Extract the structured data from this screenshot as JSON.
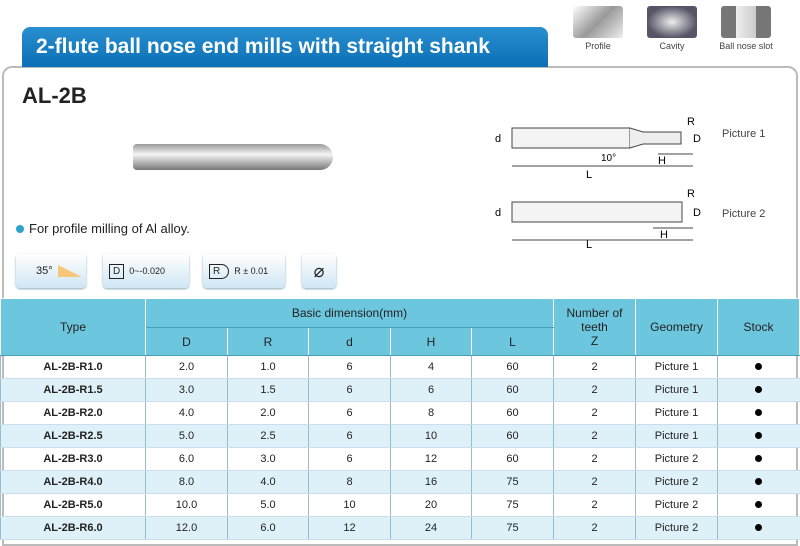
{
  "title": "2-flute ball nose end mills with straight shank",
  "applications": [
    {
      "label": "Profile"
    },
    {
      "label": "Cavity"
    },
    {
      "label": "Ball nose slot"
    }
  ],
  "model": "AL-2B",
  "feature": "For profile milling of Al alloy.",
  "specs": {
    "helix": "35°",
    "d_tol_label": "D",
    "d_tol": "0~-0.020",
    "r_tol_label": "R",
    "r_tol": "R ± 0.01"
  },
  "drawings": {
    "picture1": "Picture 1",
    "picture2": "Picture 2",
    "angle": "10°",
    "labels": {
      "d": "d",
      "D": "D",
      "R": "R",
      "H": "H",
      "L": "L"
    }
  },
  "table": {
    "headers": {
      "type": "Type",
      "basic": "Basic dimension(mm)",
      "teeth": "Number of teeth",
      "teeth_sym": "Z",
      "geometry": "Geometry",
      "stock": "Stock",
      "sub": [
        "D",
        "R",
        "d",
        "H",
        "L"
      ]
    },
    "rows": [
      {
        "type": "AL-2B-R1.0",
        "D": "2.0",
        "R": "1.0",
        "d": "6",
        "H": "4",
        "L": "60",
        "Z": "2",
        "geometry": "Picture 1",
        "stock": true
      },
      {
        "type": "AL-2B-R1.5",
        "D": "3.0",
        "R": "1.5",
        "d": "6",
        "H": "6",
        "L": "60",
        "Z": "2",
        "geometry": "Picture 1",
        "stock": true
      },
      {
        "type": "AL-2B-R2.0",
        "D": "4.0",
        "R": "2.0",
        "d": "6",
        "H": "8",
        "L": "60",
        "Z": "2",
        "geometry": "Picture 1",
        "stock": true
      },
      {
        "type": "AL-2B-R2.5",
        "D": "5.0",
        "R": "2.5",
        "d": "6",
        "H": "10",
        "L": "60",
        "Z": "2",
        "geometry": "Picture 1",
        "stock": true
      },
      {
        "type": "AL-2B-R3.0",
        "D": "6.0",
        "R": "3.0",
        "d": "6",
        "H": "12",
        "L": "60",
        "Z": "2",
        "geometry": "Picture 2",
        "stock": true
      },
      {
        "type": "AL-2B-R4.0",
        "D": "8.0",
        "R": "4.0",
        "d": "8",
        "H": "16",
        "L": "75",
        "Z": "2",
        "geometry": "Picture 2",
        "stock": true
      },
      {
        "type": "AL-2B-R5.0",
        "D": "10.0",
        "R": "5.0",
        "d": "10",
        "H": "20",
        "L": "75",
        "Z": "2",
        "geometry": "Picture 2",
        "stock": true
      },
      {
        "type": "AL-2B-R6.0",
        "D": "12.0",
        "R": "6.0",
        "d": "12",
        "H": "24",
        "L": "75",
        "Z": "2",
        "geometry": "Picture 2",
        "stock": true
      }
    ]
  }
}
